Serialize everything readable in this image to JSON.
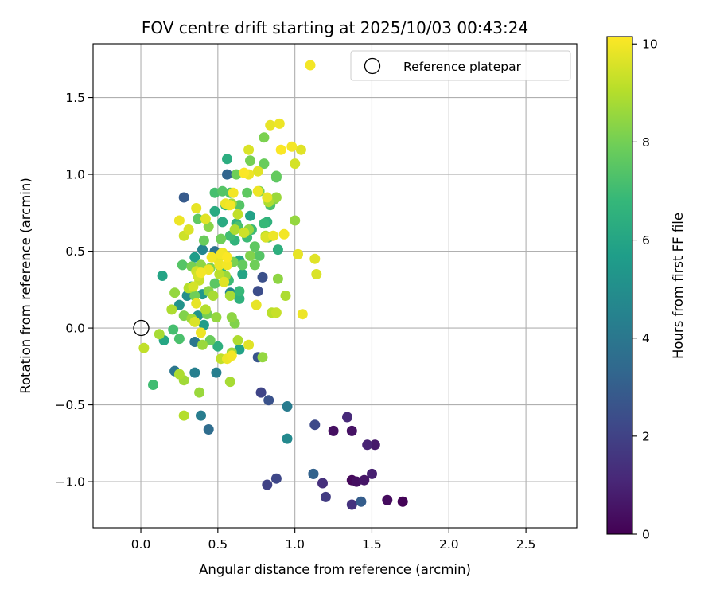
{
  "chart_data": {
    "type": "scatter",
    "title": "FOV centre drift starting at 2025/10/03 00:43:24",
    "xlabel": "Angular distance from reference (arcmin)",
    "ylabel": "Rotation from reference (arcmin)",
    "xlim": [
      -0.31,
      2.83
    ],
    "ylim": [
      -1.3,
      1.85
    ],
    "xticks": [
      0.0,
      0.5,
      1.0,
      1.5,
      2.0,
      2.5
    ],
    "xtick_labels": [
      "0.0",
      "0.5",
      "1.0",
      "1.5",
      "2.0",
      "2.5"
    ],
    "yticks": [
      -1.0,
      -0.5,
      0.0,
      0.5,
      1.0,
      1.5
    ],
    "ytick_labels": [
      "−1.0",
      "−0.5",
      "0.0",
      "0.5",
      "1.0",
      "1.5"
    ],
    "grid": true,
    "legend": {
      "position": "top-right",
      "entries": [
        "Reference platepar"
      ]
    },
    "reference_point": {
      "x": 0.0,
      "y": 0.0,
      "label": "Reference platepar"
    },
    "colorbar": {
      "label": "Hours from first FF file",
      "min": 0,
      "max": 10.15,
      "ticks": [
        0,
        2,
        4,
        6,
        8,
        10
      ],
      "tick_labels": [
        "0",
        "2",
        "4",
        "6",
        "8",
        "10"
      ],
      "colormap": "viridis",
      "colormap_stops": [
        "#440154",
        "#482878",
        "#3e4989",
        "#31688e",
        "#26828e",
        "#1f9e89",
        "#35b779",
        "#6ece58",
        "#b5de2b",
        "#fde725"
      ]
    },
    "series": [
      {
        "name": "FOV centre drift",
        "color_by": "hours",
        "points": [
          {
            "x": 1.37,
            "y": -0.99,
            "h": 0.2
          },
          {
            "x": 1.4,
            "y": -1.0,
            "h": 0.4
          },
          {
            "x": 1.45,
            "y": -0.99,
            "h": 0.6
          },
          {
            "x": 1.5,
            "y": -0.95,
            "h": 0.9
          },
          {
            "x": 1.6,
            "y": -1.12,
            "h": 0.3
          },
          {
            "x": 1.7,
            "y": -1.13,
            "h": 0.1
          },
          {
            "x": 1.52,
            "y": -0.76,
            "h": 0.7
          },
          {
            "x": 1.47,
            "y": -0.76,
            "h": 1.0
          },
          {
            "x": 1.34,
            "y": -0.58,
            "h": 1.2
          },
          {
            "x": 1.37,
            "y": -0.67,
            "h": 0.5
          },
          {
            "x": 1.25,
            "y": -0.67,
            "h": 0.4
          },
          {
            "x": 1.37,
            "y": -1.15,
            "h": 1.5
          },
          {
            "x": 1.43,
            "y": -1.13,
            "h": 3.0
          },
          {
            "x": 1.2,
            "y": -1.1,
            "h": 1.8
          },
          {
            "x": 1.18,
            "y": -1.01,
            "h": 1.4
          },
          {
            "x": 1.12,
            "y": -0.95,
            "h": 2.4
          },
          {
            "x": 1.12,
            "y": -0.95,
            "h": 3.2
          },
          {
            "x": 1.13,
            "y": -0.63,
            "h": 2.3
          },
          {
            "x": 0.82,
            "y": -1.02,
            "h": 2.0
          },
          {
            "x": 0.88,
            "y": -0.98,
            "h": 2.2
          },
          {
            "x": 0.78,
            "y": -0.42,
            "h": 2.1
          },
          {
            "x": 0.83,
            "y": -0.47,
            "h": 2.6
          },
          {
            "x": 0.95,
            "y": -0.51,
            "h": 4.2
          },
          {
            "x": 0.95,
            "y": -0.72,
            "h": 4.8
          },
          {
            "x": 0.76,
            "y": -0.19,
            "h": 2.7
          },
          {
            "x": 0.79,
            "y": 0.33,
            "h": 2.5
          },
          {
            "x": 0.76,
            "y": 0.24,
            "h": 2.4
          },
          {
            "x": 0.56,
            "y": 1.0,
            "h": 3.3
          },
          {
            "x": 0.28,
            "y": 0.85,
            "h": 2.9
          },
          {
            "x": 0.44,
            "y": -0.66,
            "h": 3.6
          },
          {
            "x": 0.39,
            "y": -0.57,
            "h": 4.3
          },
          {
            "x": 0.35,
            "y": -0.29,
            "h": 4.4
          },
          {
            "x": 0.49,
            "y": -0.29,
            "h": 4.4
          },
          {
            "x": 0.35,
            "y": -0.09,
            "h": 4.0
          },
          {
            "x": 0.22,
            "y": -0.28,
            "h": 4.0
          },
          {
            "x": 0.4,
            "y": 0.51,
            "h": 4.6
          },
          {
            "x": 0.48,
            "y": 0.5,
            "h": 3.8
          },
          {
            "x": 0.58,
            "y": 0.23,
            "h": 4.6
          },
          {
            "x": 0.35,
            "y": 0.46,
            "h": 5.6
          },
          {
            "x": 0.33,
            "y": 0.27,
            "h": 5.7
          },
          {
            "x": 0.25,
            "y": 0.15,
            "h": 5.2
          },
          {
            "x": 0.14,
            "y": 0.34,
            "h": 5.9
          },
          {
            "x": 0.3,
            "y": 0.21,
            "h": 5.0
          },
          {
            "x": 0.4,
            "y": 0.22,
            "h": 5.4
          },
          {
            "x": 0.37,
            "y": 0.08,
            "h": 5.2
          },
          {
            "x": 0.41,
            "y": 0.02,
            "h": 5.6
          },
          {
            "x": 0.15,
            "y": -0.08,
            "h": 6.0
          },
          {
            "x": 0.5,
            "y": -0.12,
            "h": 6.4
          },
          {
            "x": 0.64,
            "y": -0.14,
            "h": 5.8
          },
          {
            "x": 0.56,
            "y": 1.1,
            "h": 6.3
          },
          {
            "x": 0.53,
            "y": 0.69,
            "h": 6.2
          },
          {
            "x": 0.61,
            "y": 0.57,
            "h": 6.6
          },
          {
            "x": 0.64,
            "y": 0.44,
            "h": 6.0
          },
          {
            "x": 0.66,
            "y": 0.35,
            "h": 5.9
          },
          {
            "x": 0.62,
            "y": 0.68,
            "h": 6.5
          },
          {
            "x": 0.71,
            "y": 0.73,
            "h": 5.8
          },
          {
            "x": 0.82,
            "y": 0.69,
            "h": 6.5
          },
          {
            "x": 0.8,
            "y": 0.68,
            "h": 6.8
          },
          {
            "x": 0.72,
            "y": 0.64,
            "h": 6.9
          },
          {
            "x": 0.55,
            "y": 0.8,
            "h": 6.6
          },
          {
            "x": 0.48,
            "y": 0.76,
            "h": 6.2
          },
          {
            "x": 0.89,
            "y": 0.51,
            "h": 6.4
          },
          {
            "x": 0.64,
            "y": 0.19,
            "h": 6.5
          },
          {
            "x": 0.64,
            "y": 0.24,
            "h": 6.8
          },
          {
            "x": 0.57,
            "y": 0.31,
            "h": 6.9
          },
          {
            "x": 0.52,
            "y": 0.38,
            "h": 6.7
          },
          {
            "x": 0.58,
            "y": 0.6,
            "h": 7.0
          },
          {
            "x": 0.63,
            "y": 0.66,
            "h": 7.2
          },
          {
            "x": 0.69,
            "y": 0.59,
            "h": 6.9
          },
          {
            "x": 0.08,
            "y": -0.37,
            "h": 7.0
          },
          {
            "x": 0.21,
            "y": -0.01,
            "h": 7.1
          },
          {
            "x": 0.25,
            "y": -0.07,
            "h": 7.2
          },
          {
            "x": 0.48,
            "y": 0.88,
            "h": 7.1
          },
          {
            "x": 0.53,
            "y": 0.89,
            "h": 7.4
          },
          {
            "x": 0.58,
            "y": 0.88,
            "h": 7.3
          },
          {
            "x": 0.69,
            "y": 0.88,
            "h": 7.6
          },
          {
            "x": 0.64,
            "y": 0.8,
            "h": 7.4
          },
          {
            "x": 0.84,
            "y": 0.8,
            "h": 7.2
          },
          {
            "x": 0.88,
            "y": 0.98,
            "h": 7.5
          },
          {
            "x": 0.8,
            "y": 1.07,
            "h": 7.8
          },
          {
            "x": 0.8,
            "y": 1.24,
            "h": 8.1
          },
          {
            "x": 0.71,
            "y": 1.09,
            "h": 8.0
          },
          {
            "x": 0.62,
            "y": 1.0,
            "h": 7.9
          },
          {
            "x": 0.87,
            "y": 0.84,
            "h": 8.2
          },
          {
            "x": 0.77,
            "y": 0.89,
            "h": 8.0
          },
          {
            "x": 0.88,
            "y": 0.99,
            "h": 7.7
          },
          {
            "x": 0.74,
            "y": 0.53,
            "h": 7.6
          },
          {
            "x": 0.77,
            "y": 0.47,
            "h": 7.4
          },
          {
            "x": 0.83,
            "y": 0.59,
            "h": 7.8
          },
          {
            "x": 0.74,
            "y": 0.41,
            "h": 7.9
          },
          {
            "x": 0.71,
            "y": 0.47,
            "h": 8.2
          },
          {
            "x": 0.66,
            "y": 0.41,
            "h": 7.7
          },
          {
            "x": 0.6,
            "y": 0.43,
            "h": 8.1
          },
          {
            "x": 0.55,
            "y": 0.47,
            "h": 7.5
          },
          {
            "x": 0.52,
            "y": 0.58,
            "h": 7.9
          },
          {
            "x": 0.41,
            "y": 0.57,
            "h": 7.8
          },
          {
            "x": 0.37,
            "y": 0.71,
            "h": 7.6
          },
          {
            "x": 0.44,
            "y": 0.66,
            "h": 8.3
          },
          {
            "x": 0.27,
            "y": 0.41,
            "h": 7.4
          },
          {
            "x": 0.33,
            "y": 0.4,
            "h": 8.0
          },
          {
            "x": 0.39,
            "y": 0.41,
            "h": 8.4
          },
          {
            "x": 0.45,
            "y": 0.39,
            "h": 8.1
          },
          {
            "x": 0.35,
            "y": 0.21,
            "h": 7.9
          },
          {
            "x": 0.44,
            "y": 0.24,
            "h": 8.3
          },
          {
            "x": 0.48,
            "y": 0.29,
            "h": 7.5
          },
          {
            "x": 0.28,
            "y": 0.08,
            "h": 8.2
          },
          {
            "x": 0.43,
            "y": 0.09,
            "h": 8.0
          },
          {
            "x": 0.49,
            "y": 0.07,
            "h": 8.5
          },
          {
            "x": 0.61,
            "y": 0.03,
            "h": 8.2
          },
          {
            "x": 0.59,
            "y": 0.07,
            "h": 8.4
          },
          {
            "x": 0.4,
            "y": -0.11,
            "h": 8.6
          },
          {
            "x": 0.45,
            "y": -0.08,
            "h": 7.8
          },
          {
            "x": 0.59,
            "y": -0.16,
            "h": 8.7
          },
          {
            "x": 0.63,
            "y": -0.08,
            "h": 8.9
          },
          {
            "x": 0.79,
            "y": -0.19,
            "h": 8.5
          },
          {
            "x": 0.52,
            "y": -0.2,
            "h": 9.2
          },
          {
            "x": 0.38,
            "y": -0.42,
            "h": 8.6
          },
          {
            "x": 0.28,
            "y": -0.34,
            "h": 8.7
          },
          {
            "x": 0.28,
            "y": -0.57,
            "h": 9.0
          },
          {
            "x": 0.58,
            "y": -0.35,
            "h": 8.8
          },
          {
            "x": 0.25,
            "y": -0.3,
            "h": 8.9
          },
          {
            "x": 0.12,
            "y": -0.04,
            "h": 8.8
          },
          {
            "x": 0.02,
            "y": -0.13,
            "h": 9.2
          },
          {
            "x": 0.2,
            "y": 0.12,
            "h": 8.9
          },
          {
            "x": 0.22,
            "y": 0.23,
            "h": 8.5
          },
          {
            "x": 0.31,
            "y": 0.26,
            "h": 9.0
          },
          {
            "x": 0.33,
            "y": 0.06,
            "h": 8.7
          },
          {
            "x": 0.42,
            "y": 0.12,
            "h": 9.0
          },
          {
            "x": 0.47,
            "y": 0.21,
            "h": 8.8
          },
          {
            "x": 0.51,
            "y": 0.35,
            "h": 9.1
          },
          {
            "x": 0.55,
            "y": 0.34,
            "h": 8.6
          },
          {
            "x": 0.58,
            "y": 0.21,
            "h": 8.8
          },
          {
            "x": 0.7,
            "y": 0.64,
            "h": 8.5
          },
          {
            "x": 0.61,
            "y": 0.64,
            "h": 8.9
          },
          {
            "x": 0.57,
            "y": 0.8,
            "h": 9.0
          },
          {
            "x": 0.59,
            "y": 0.81,
            "h": 8.7
          },
          {
            "x": 0.63,
            "y": 0.74,
            "h": 9.2
          },
          {
            "x": 0.67,
            "y": 0.62,
            "h": 9.4
          },
          {
            "x": 0.81,
            "y": 0.6,
            "h": 9.0
          },
          {
            "x": 0.83,
            "y": 0.82,
            "h": 8.9
          },
          {
            "x": 0.88,
            "y": 0.85,
            "h": 8.6
          },
          {
            "x": 1.0,
            "y": 0.7,
            "h": 8.5
          },
          {
            "x": 0.89,
            "y": 0.32,
            "h": 8.4
          },
          {
            "x": 0.94,
            "y": 0.21,
            "h": 8.9
          },
          {
            "x": 0.85,
            "y": 0.1,
            "h": 9.1
          },
          {
            "x": 0.88,
            "y": 0.1,
            "h": 9.3
          },
          {
            "x": 0.36,
            "y": 0.37,
            "h": 9.4
          },
          {
            "x": 0.38,
            "y": 0.31,
            "h": 9.3
          },
          {
            "x": 0.34,
            "y": 0.27,
            "h": 9.5
          },
          {
            "x": 0.31,
            "y": 0.64,
            "h": 9.6
          },
          {
            "x": 0.28,
            "y": 0.6,
            "h": 9.4
          },
          {
            "x": 0.36,
            "y": 0.78,
            "h": 9.8
          },
          {
            "x": 0.42,
            "y": 0.71,
            "h": 9.7
          },
          {
            "x": 0.25,
            "y": 0.7,
            "h": 9.9
          },
          {
            "x": 0.36,
            "y": 0.16,
            "h": 9.8
          },
          {
            "x": 0.35,
            "y": 0.04,
            "h": 9.6
          },
          {
            "x": 0.39,
            "y": -0.03,
            "h": 9.9
          },
          {
            "x": 0.59,
            "y": -0.18,
            "h": 10.0
          },
          {
            "x": 0.56,
            "y": -0.2,
            "h": 9.9
          },
          {
            "x": 0.7,
            "y": -0.11,
            "h": 9.7
          },
          {
            "x": 0.75,
            "y": 0.15,
            "h": 9.8
          },
          {
            "x": 0.53,
            "y": 0.49,
            "h": 9.9
          },
          {
            "x": 0.56,
            "y": 0.41,
            "h": 10.0
          },
          {
            "x": 0.7,
            "y": 1.16,
            "h": 9.6
          },
          {
            "x": 0.84,
            "y": 1.32,
            "h": 9.8
          },
          {
            "x": 0.9,
            "y": 1.33,
            "h": 9.9
          },
          {
            "x": 0.98,
            "y": 1.18,
            "h": 10.0
          },
          {
            "x": 0.91,
            "y": 1.16,
            "h": 10.1
          },
          {
            "x": 1.04,
            "y": 1.16,
            "h": 9.7
          },
          {
            "x": 1.0,
            "y": 1.07,
            "h": 9.5
          },
          {
            "x": 0.76,
            "y": 1.02,
            "h": 9.7
          },
          {
            "x": 0.67,
            "y": 1.01,
            "h": 10.1
          },
          {
            "x": 0.7,
            "y": 1.0,
            "h": 9.9
          },
          {
            "x": 0.82,
            "y": 0.85,
            "h": 9.8
          },
          {
            "x": 0.76,
            "y": 0.89,
            "h": 9.9
          },
          {
            "x": 0.6,
            "y": 0.88,
            "h": 10.0
          },
          {
            "x": 0.55,
            "y": 0.81,
            "h": 9.9
          },
          {
            "x": 0.58,
            "y": 0.8,
            "h": 10.0
          },
          {
            "x": 0.93,
            "y": 0.61,
            "h": 10.0
          },
          {
            "x": 0.86,
            "y": 0.6,
            "h": 9.9
          },
          {
            "x": 0.81,
            "y": 0.59,
            "h": 9.6
          },
          {
            "x": 1.02,
            "y": 0.48,
            "h": 9.8
          },
          {
            "x": 1.13,
            "y": 0.45,
            "h": 9.7
          },
          {
            "x": 1.14,
            "y": 0.35,
            "h": 9.6
          },
          {
            "x": 1.05,
            "y": 0.09,
            "h": 9.9
          },
          {
            "x": 1.1,
            "y": 1.71,
            "h": 10.0
          },
          {
            "x": 0.52,
            "y": 0.48,
            "h": 10.0
          },
          {
            "x": 0.51,
            "y": 0.41,
            "h": 9.9
          },
          {
            "x": 0.54,
            "y": 0.3,
            "h": 9.7
          },
          {
            "x": 0.46,
            "y": 0.46,
            "h": 10.0
          },
          {
            "x": 0.5,
            "y": 0.45,
            "h": 9.8
          },
          {
            "x": 0.44,
            "y": 0.38,
            "h": 9.9
          },
          {
            "x": 0.39,
            "y": 0.36,
            "h": 10.0
          },
          {
            "x": 0.37,
            "y": 0.34,
            "h": 9.5
          },
          {
            "x": 0.56,
            "y": 0.46,
            "h": 10.1
          }
        ]
      }
    ]
  }
}
